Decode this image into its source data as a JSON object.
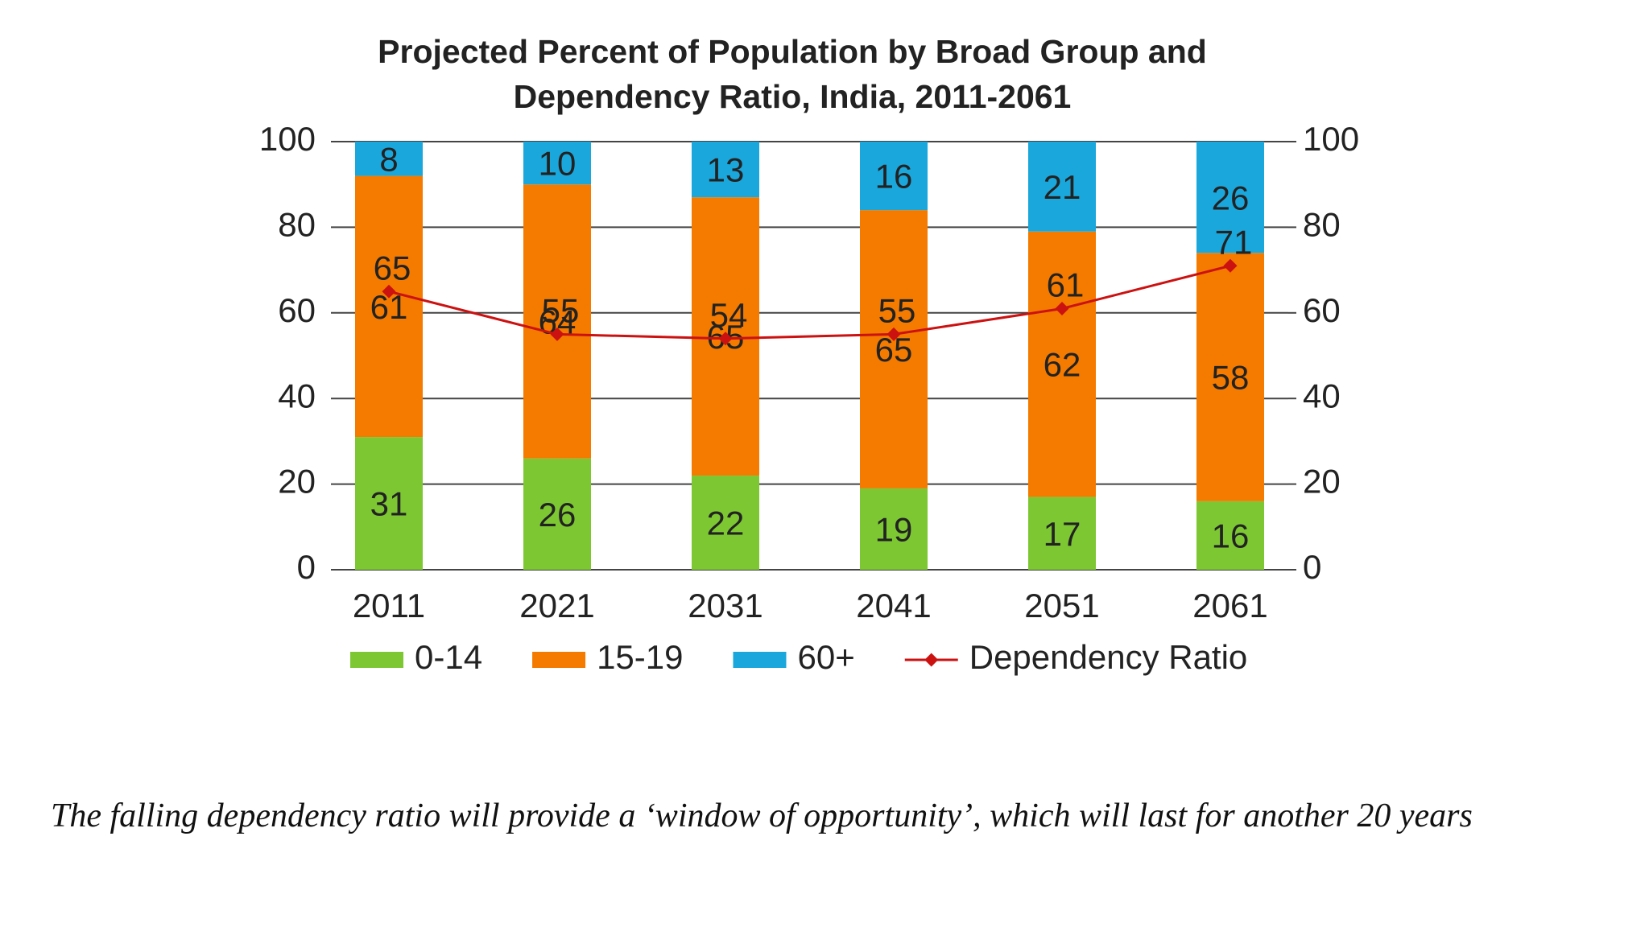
{
  "chart_data": {
    "type": "stacked-bar-line",
    "title": "Projected Percent of Population by Broad Group and Dependency Ratio, India, 2011-2061",
    "categories": [
      "2011",
      "2021",
      "2031",
      "2041",
      "2051",
      "2061"
    ],
    "series": [
      {
        "name": "0-14",
        "color": "#7dc832",
        "values": [
          31,
          26,
          22,
          19,
          17,
          16
        ]
      },
      {
        "name": "15-19",
        "color": "#f47a00",
        "values": [
          61,
          64,
          65,
          65,
          62,
          58
        ]
      },
      {
        "name": "60+",
        "color": "#1aa7dc",
        "values": [
          8,
          10,
          13,
          16,
          21,
          26
        ]
      },
      {
        "name": "Dependency Ratio",
        "color": "#cc1111",
        "axis": "y2",
        "values": [
          65,
          55,
          54,
          55,
          61,
          71
        ]
      }
    ],
    "ylim": [
      0,
      100
    ],
    "yticks": [
      0,
      20,
      40,
      60,
      80,
      100
    ],
    "y2lim": [
      0,
      100
    ],
    "y2ticks": [
      0,
      20,
      40,
      60,
      80,
      100
    ],
    "grid": true,
    "legend": "bottom"
  },
  "caption": "The falling dependency ratio will provide a ‘window of opportunity’, which will last for another 20 years"
}
